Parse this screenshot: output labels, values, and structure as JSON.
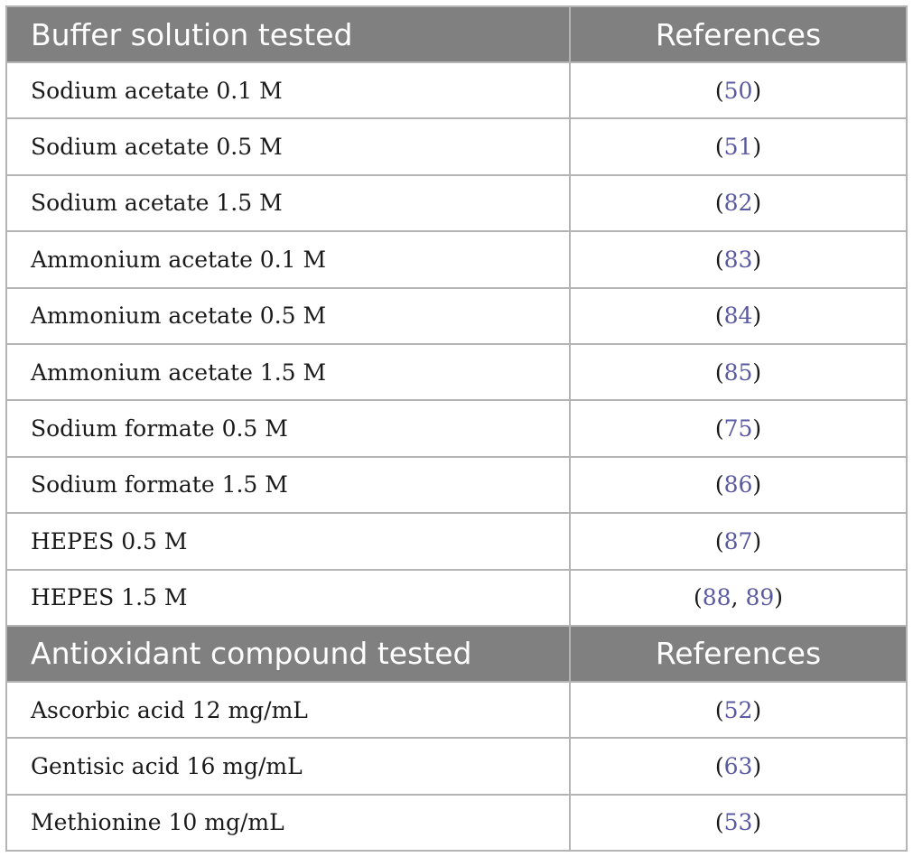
{
  "sections": [
    {
      "header": {
        "col1": "Buffer solution tested",
        "col2": "References"
      },
      "rows": [
        {
          "label": "Sodium acetate 0.1 M",
          "refs": [
            "50"
          ]
        },
        {
          "label": "Sodium acetate 0.5 M",
          "refs": [
            "51"
          ]
        },
        {
          "label": "Sodium acetate 1.5 M",
          "refs": [
            "82"
          ]
        },
        {
          "label": "Ammonium acetate 0.1 M",
          "refs": [
            "83"
          ]
        },
        {
          "label": "Ammonium acetate 0.5 M",
          "refs": [
            "84"
          ]
        },
        {
          "label": "Ammonium acetate 1.5 M",
          "refs": [
            "85"
          ]
        },
        {
          "label": "Sodium formate 0.5 M",
          "refs": [
            "75"
          ]
        },
        {
          "label": "Sodium formate 1.5 M",
          "refs": [
            "86"
          ]
        },
        {
          "label": "HEPES 0.5 M",
          "refs": [
            "87"
          ]
        },
        {
          "label": "HEPES 1.5 M",
          "refs": [
            "88",
            "89"
          ]
        }
      ]
    },
    {
      "header": {
        "col1": "Antioxidant compound tested",
        "col2": "References"
      },
      "rows": [
        {
          "label": "Ascorbic acid 12 mg/mL",
          "refs": [
            "52"
          ]
        },
        {
          "label": "Gentisic acid 16 mg/mL",
          "refs": [
            "63"
          ]
        },
        {
          "label": "Methionine 10 mg/mL",
          "refs": [
            "53"
          ]
        }
      ]
    }
  ],
  "colors": {
    "header_bg": "#808080",
    "header_text": "#ffffff",
    "ref_link": "#5a5aa0",
    "border": "#b4b4b4"
  }
}
